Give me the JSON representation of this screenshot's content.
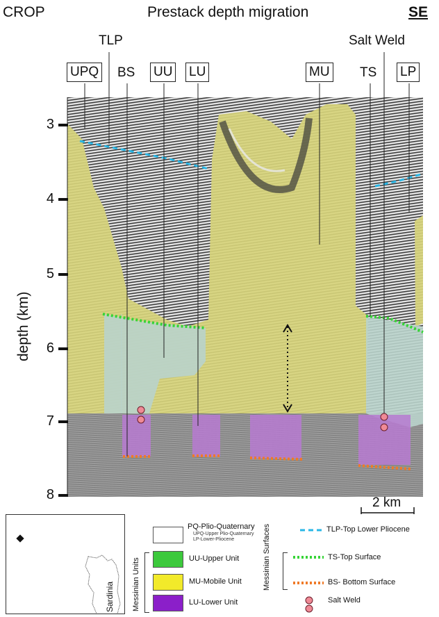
{
  "header": {
    "left": "CROP",
    "center": "Prestack depth migration",
    "right": "SE"
  },
  "section_labels": {
    "tlp": "TLP",
    "upq": "UPQ",
    "bs": "BS",
    "uu": "UU",
    "lu": "LU",
    "mu": "MU",
    "ts": "TS",
    "lp": "LP",
    "salt_weld": "Salt Weld"
  },
  "axis": {
    "ylabel": "depth (km)",
    "ticks": [
      "3",
      "4",
      "5",
      "6",
      "7",
      "8"
    ],
    "scale_bar": "2 km"
  },
  "colors": {
    "mobile_unit": "#d6d27a",
    "upper_unit": "#b9d3cb",
    "lower_unit": "#b77ad1",
    "basement": "#9a9a9a",
    "tlp_line": "#2ab7e6",
    "ts_line": "#37d437",
    "bs_line": "#f07a28",
    "salt_weld": "#ef8a96"
  },
  "legend": {
    "pq_title": "PQ-Plio-Quaternary",
    "pq_sub1": "UPQ-Upper Plio-Quaternary",
    "pq_sub2": "LP-Lower-Pliocene",
    "units_group": "Messinian Units",
    "uu": "UU-Upper Unit",
    "mu": "MU-Mobile Unit",
    "lu": "LU-Lower Unit",
    "surfaces_group": "Messinian Surfaces",
    "tlp": "TLP-Top Lower Pliocene",
    "ts": "TS-Top Surface",
    "bs": "BS- Bottom Surface",
    "salt_weld": "Salt Weld",
    "map_label": "Sardinia"
  }
}
